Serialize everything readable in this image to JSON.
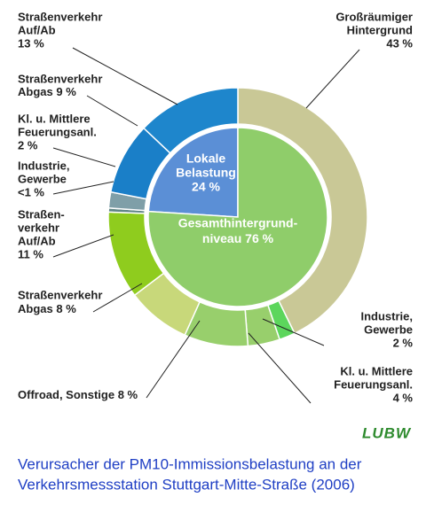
{
  "chart_data": {
    "type": "pie",
    "caption": [
      "Verursacher der PM10-Immissionsbelastung an der",
      "Verkehrsmessstation Stuttgart-Mitte-Straße (2006)"
    ],
    "logo": "LUBW",
    "inner": {
      "labels": [
        [
          "Lokale",
          "Belastung"
        ],
        [
          "Gesamthintergrund-",
          "niveau"
        ]
      ],
      "values": [
        24,
        76
      ],
      "value_labels": [
        "24 %",
        "76 %"
      ],
      "colors": [
        "#5b8fd6",
        "#8fcd6a"
      ]
    },
    "outer": {
      "labels": [
        [
          "Großräumiger",
          "Hintergrund"
        ],
        [
          "Industrie,",
          "Gewerbe"
        ],
        [
          "Kl. u. Mittlere",
          "Feuerungsanl."
        ],
        [
          "Offroad, Sonstige"
        ],
        [
          "Straßenverkehr",
          "Abgas"
        ],
        [
          "Straßen-",
          "verkehr",
          "Auf/Ab"
        ],
        [
          "Industrie,",
          "Gewerbe"
        ],
        [
          "Kl. u. Mittlere",
          "Feuerungsanl."
        ],
        [
          "Straßenverkehr",
          "Abgas"
        ],
        [
          "Straßenverkehr",
          "Auf/Ab"
        ]
      ],
      "values": [
        43,
        2,
        4,
        8,
        8,
        11,
        0.5,
        2,
        9,
        13
      ],
      "value_labels": [
        "43 %",
        "2 %",
        "4 %",
        "8 %",
        "8 %",
        "11 %",
        "<1 %",
        "2 %",
        "9 %",
        "13 %"
      ],
      "colors": [
        "#c9c896",
        "#5cd65c",
        "#98cf6c",
        "#98cf6c",
        "#c8d87a",
        "#8fcc1e",
        "#5f8585",
        "#7f9fa8",
        "#1a7fc8",
        "#1e86cc"
      ]
    }
  }
}
